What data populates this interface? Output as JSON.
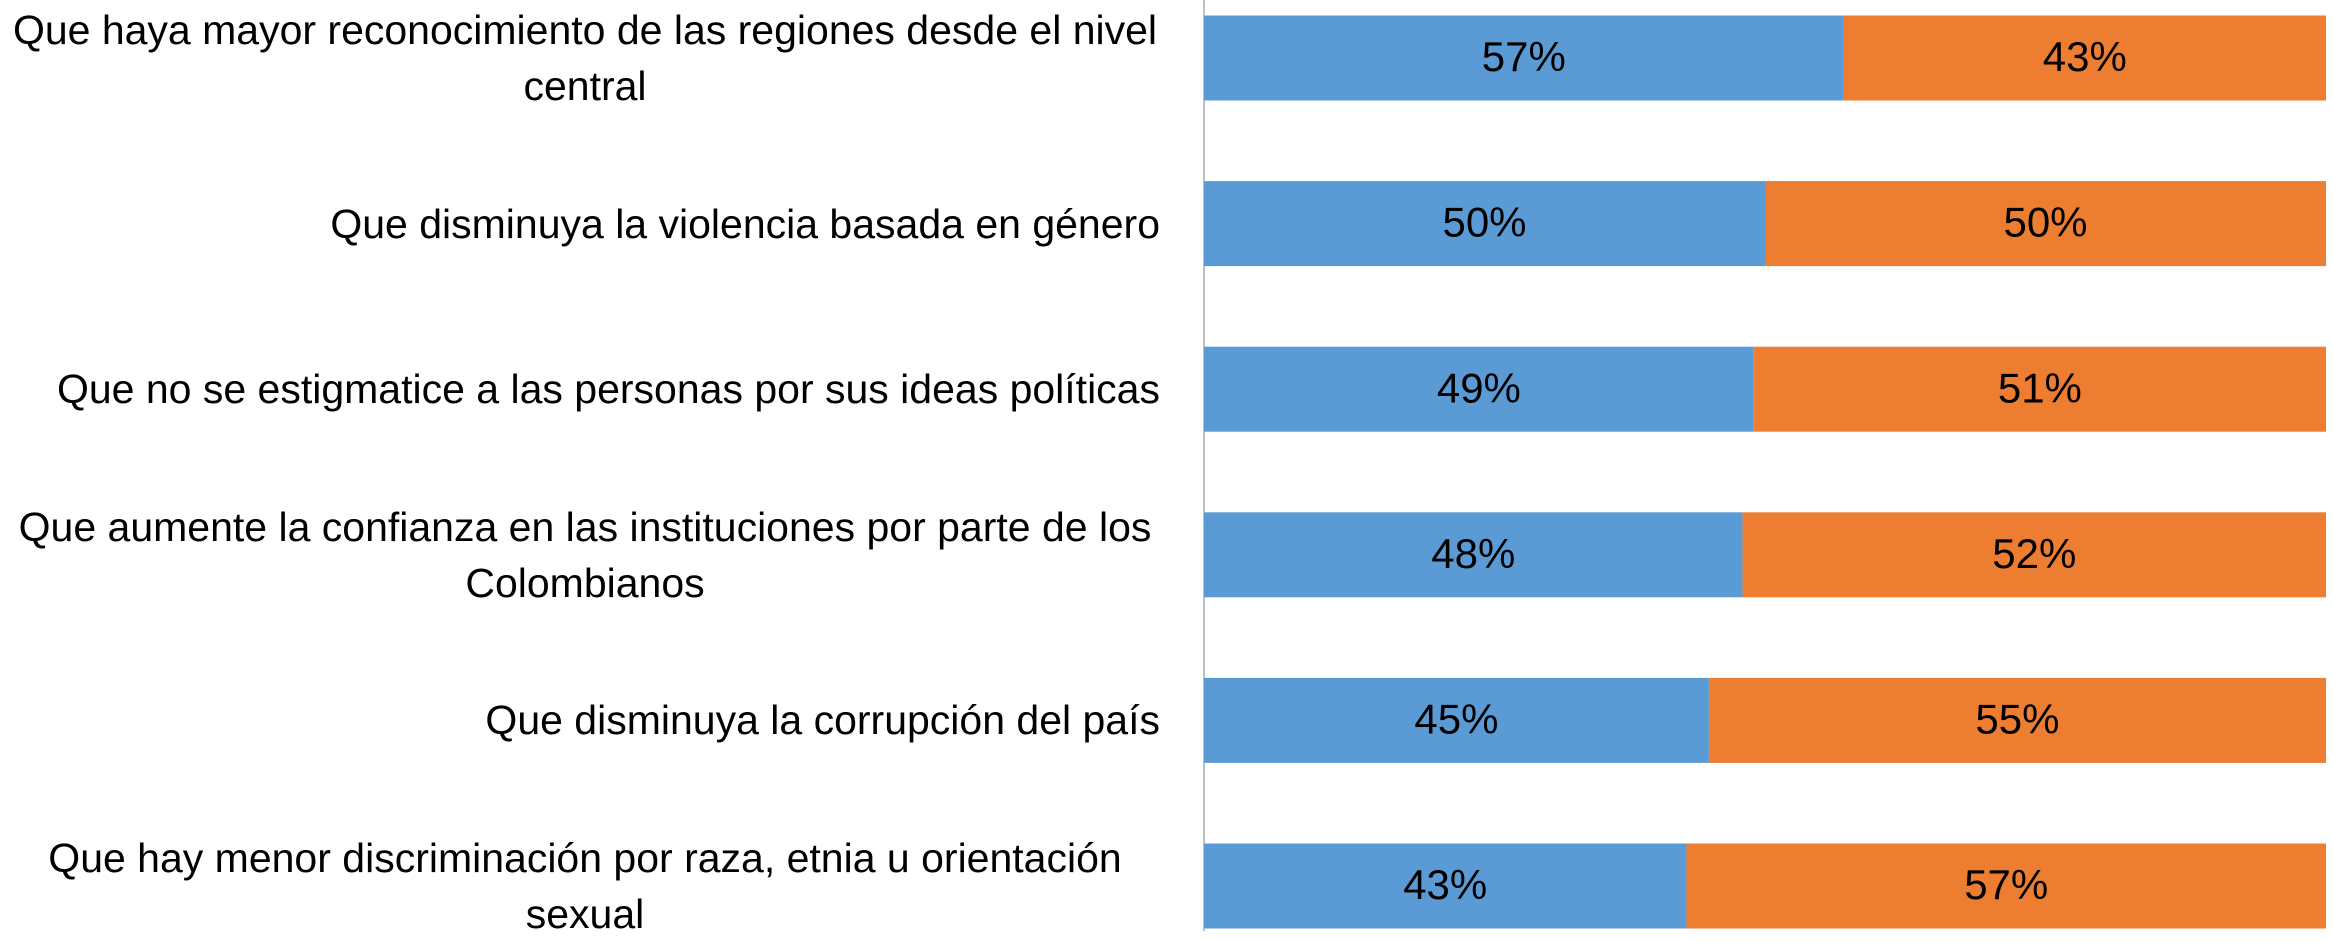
{
  "chart_data": {
    "type": "stacked-bar-horizontal",
    "categories": [
      "Que haya mayor reconocimiento de las regiones desde el nivel central",
      "Que disminuya la violencia basada en género",
      "Que no se estigmatice a las personas por sus ideas políticas",
      "Que aumente la confianza en las instituciones por parte de los Colombianos",
      "Que disminuya la corrupción del país",
      "Que hay menor discriminación por raza, etnia u orientación sexual"
    ],
    "series": [
      {
        "color": "#5b9bd5",
        "values": [
          57,
          50,
          49,
          48,
          45,
          43
        ],
        "value_labels": [
          "57%",
          "50%",
          "49%",
          "48%",
          "45%",
          "43%"
        ]
      },
      {
        "color": "#ed7d31",
        "values": [
          43,
          50,
          51,
          52,
          55,
          57
        ],
        "value_labels": [
          "43%",
          "50%",
          "51%",
          "52%",
          "55%",
          "57%"
        ]
      }
    ],
    "xlim": [
      0,
      100
    ]
  }
}
